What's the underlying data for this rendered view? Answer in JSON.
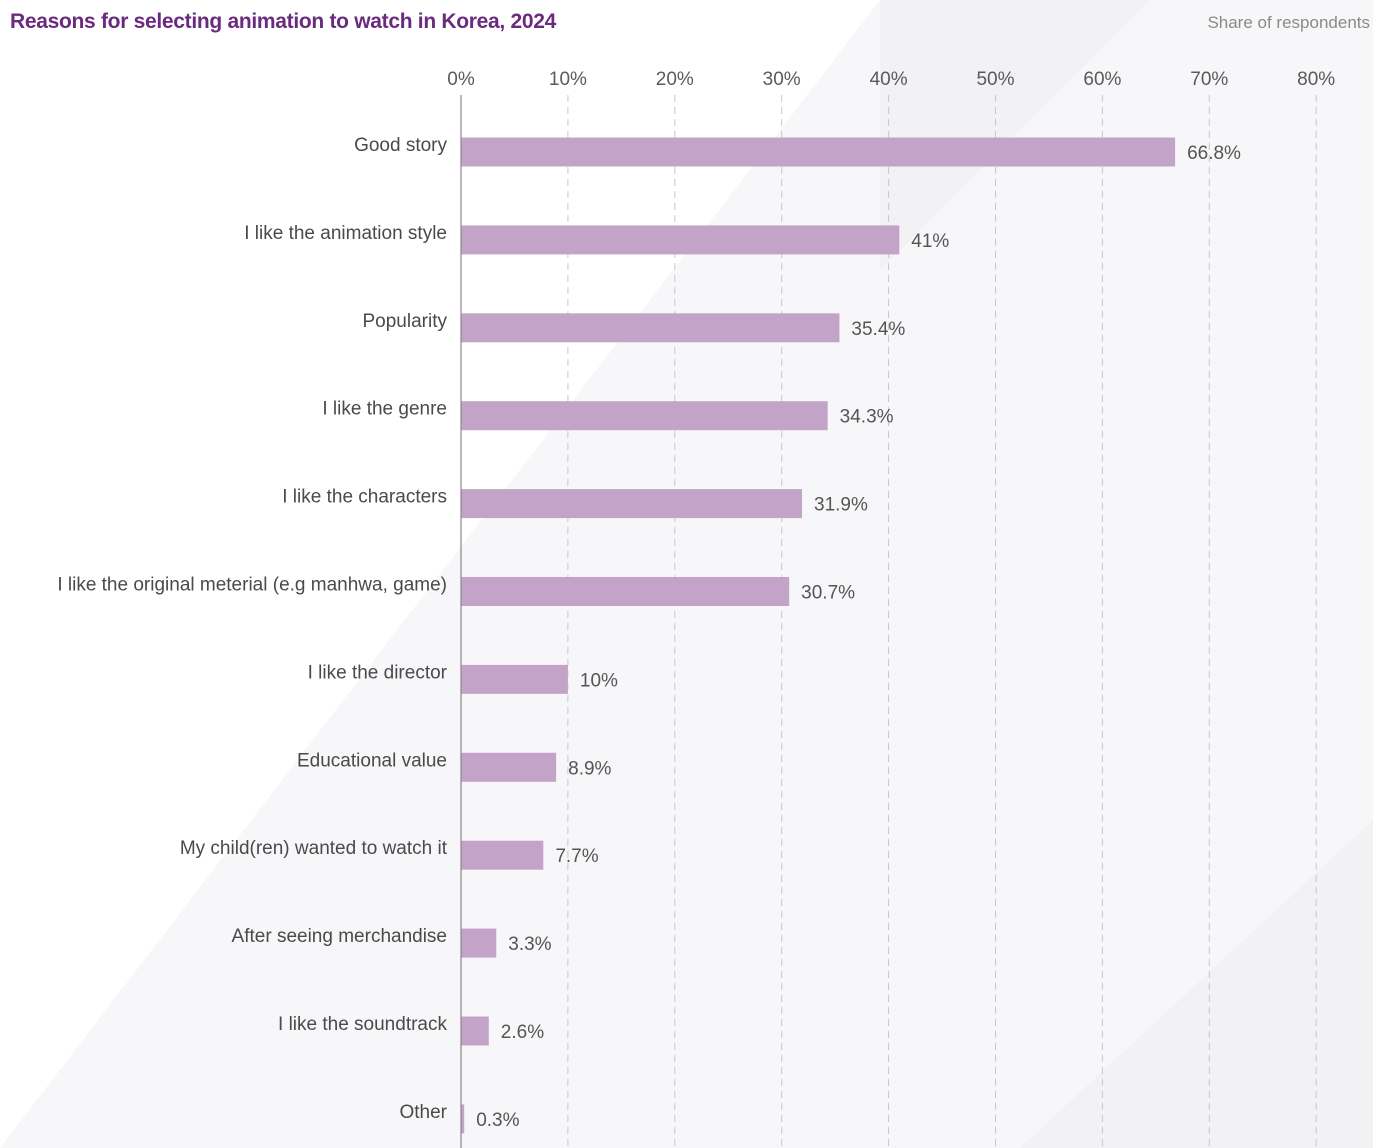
{
  "header": {
    "title": "Reasons for selecting animation to watch in Korea, 2024",
    "subtitle": "Share of respondents"
  },
  "colors": {
    "title": "#6a2a7e",
    "bar": "#c4a3c8",
    "grid": "#c8c8c8",
    "axis": "#888888"
  },
  "chart_data": {
    "type": "bar",
    "orientation": "horizontal",
    "title": "Reasons for selecting animation to watch in Korea, 2024",
    "subtitle": "Share of respondents",
    "xlabel": "",
    "ylabel": "",
    "xlim": [
      0,
      80
    ],
    "x_ticks": [
      0,
      10,
      20,
      30,
      40,
      50,
      60,
      70,
      80
    ],
    "x_tick_labels": [
      "0%",
      "10%",
      "20%",
      "30%",
      "40%",
      "50%",
      "60%",
      "70%",
      "80%"
    ],
    "x_axis_position": "top",
    "grid": "vertical dashed",
    "legend": "none",
    "categories": [
      "Good story",
      "I like the animation style",
      "Popularity",
      "I like the genre",
      "I like the characters",
      "I like the original meterial (e.g manhwa, game)",
      "I like the director",
      "Educational value",
      "My child(ren) wanted to watch it",
      "After seeing merchandise",
      "I like the soundtrack",
      "Other"
    ],
    "values": [
      66.8,
      41,
      35.4,
      34.3,
      31.9,
      30.7,
      10,
      8.9,
      7.7,
      3.3,
      2.6,
      0.3
    ],
    "value_labels": [
      "66.8%",
      "41%",
      "35.4%",
      "34.3%",
      "31.9%",
      "30.7%",
      "10%",
      "8.9%",
      "7.7%",
      "3.3%",
      "2.6%",
      "0.3%"
    ]
  }
}
